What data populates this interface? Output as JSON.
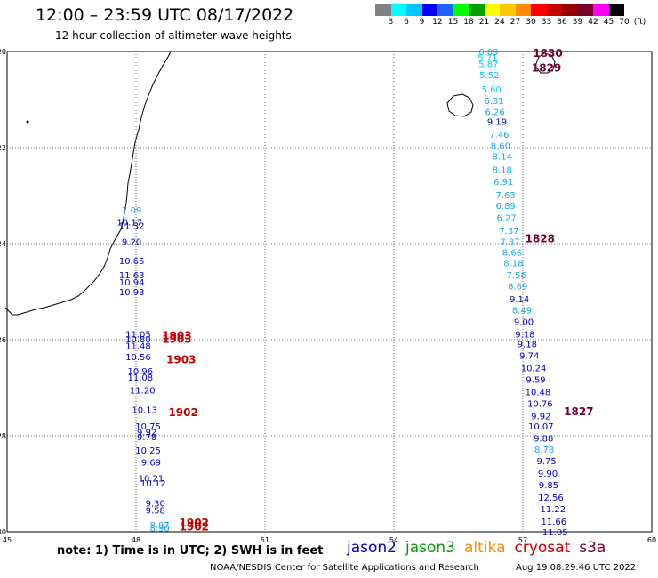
{
  "header": {
    "title": "12:00 – 23:59 UTC 08/17/2022",
    "subtitle": "12 hour collection of altimeter wave heights"
  },
  "legend": {
    "colors": [
      "#808080",
      "#00ffff",
      "#00c8ff",
      "#0000ff",
      "#1e64ff",
      "#00ff00",
      "#00a000",
      "#ffff00",
      "#ffc800",
      "#ff8c00",
      "#ff0000",
      "#c80000",
      "#960000",
      "#780028",
      "#ff00ff",
      "#000000"
    ],
    "labels": [
      "3",
      "6",
      "9",
      "12",
      "15",
      "18",
      "21",
      "24",
      "27",
      "30",
      "33",
      "36",
      "39",
      "42",
      "45",
      "70",
      "(ft)"
    ]
  },
  "axes": {
    "x_ticks": [
      "45",
      "48",
      "51",
      "54",
      "57",
      "60"
    ],
    "y_ticks": [
      "-20",
      "-22",
      "-24",
      "-26",
      "-28",
      "-30"
    ]
  },
  "chart_data": {
    "type": "scatter",
    "xlim": [
      45,
      60
    ],
    "ylim": [
      -30,
      -20
    ],
    "grid": "dotted",
    "color_scale": "wave height (ft)",
    "series": [
      {
        "name": "jason2",
        "color_by_value": true,
        "points": [
          {
            "x": 56.2,
            "y": -20.0,
            "v": "6.09"
          },
          {
            "x": 56.18,
            "y": -20.12,
            "v": "5.71"
          },
          {
            "x": 56.2,
            "y": -20.25,
            "v": "5.87"
          },
          {
            "x": 56.22,
            "y": -20.48,
            "v": "5.52"
          },
          {
            "x": 56.27,
            "y": -20.78,
            "v": "5.60"
          },
          {
            "x": 56.33,
            "y": -21.02,
            "v": "6.31"
          },
          {
            "x": 56.35,
            "y": -21.25,
            "v": "6.26"
          },
          {
            "x": 56.4,
            "y": -21.45,
            "v": "9.19"
          },
          {
            "x": 56.45,
            "y": -21.72,
            "v": "7.46"
          },
          {
            "x": 56.48,
            "y": -21.95,
            "v": "8.60"
          },
          {
            "x": 56.52,
            "y": -22.18,
            "v": "8.14"
          },
          {
            "x": 56.52,
            "y": -22.45,
            "v": "8.18"
          },
          {
            "x": 56.55,
            "y": -22.7,
            "v": "6.91"
          },
          {
            "x": 56.6,
            "y": -22.98,
            "v": "7.63"
          },
          {
            "x": 56.6,
            "y": -23.2,
            "v": "6.89"
          },
          {
            "x": 56.62,
            "y": -23.45,
            "v": "6.27"
          },
          {
            "x": 56.68,
            "y": -23.72,
            "v": "7.37"
          },
          {
            "x": 56.7,
            "y": -23.95,
            "v": "7.87"
          },
          {
            "x": 56.75,
            "y": -24.18,
            "v": "8.66"
          },
          {
            "x": 56.78,
            "y": -24.4,
            "v": "8.18"
          },
          {
            "x": 56.85,
            "y": -24.65,
            "v": "7.56"
          },
          {
            "x": 56.88,
            "y": -24.88,
            "v": "8.69"
          },
          {
            "x": 56.92,
            "y": -25.15,
            "v": "9.14"
          },
          {
            "x": 56.98,
            "y": -25.38,
            "v": "8.49"
          },
          {
            "x": 57.02,
            "y": -25.62,
            "v": "9.00"
          },
          {
            "x": 57.05,
            "y": -25.88,
            "v": "9.18"
          },
          {
            "x": 57.1,
            "y": -26.08,
            "v": "9.18"
          },
          {
            "x": 57.15,
            "y": -26.32,
            "v": "9.74"
          },
          {
            "x": 57.25,
            "y": -26.58,
            "v": "10.24"
          },
          {
            "x": 57.3,
            "y": -26.82,
            "v": "9.59"
          },
          {
            "x": 57.35,
            "y": -27.08,
            "v": "10.48"
          },
          {
            "x": 57.4,
            "y": -27.32,
            "v": "10.76"
          },
          {
            "x": 57.42,
            "y": -27.58,
            "v": "9.92"
          },
          {
            "x": 57.42,
            "y": -27.8,
            "v": "10.07"
          },
          {
            "x": 57.48,
            "y": -28.05,
            "v": "9.88"
          },
          {
            "x": 57.5,
            "y": -28.28,
            "v": "8.78"
          },
          {
            "x": 57.55,
            "y": -28.52,
            "v": "9.75"
          },
          {
            "x": 57.58,
            "y": -28.78,
            "v": "9.90"
          },
          {
            "x": 57.6,
            "y": -29.02,
            "v": "9.85"
          },
          {
            "x": 57.65,
            "y": -29.28,
            "v": "12.56"
          },
          {
            "x": 57.7,
            "y": -29.52,
            "v": "11.22"
          },
          {
            "x": 57.72,
            "y": -29.78,
            "v": "11.66"
          },
          {
            "x": 57.75,
            "y": -30.0,
            "v": "11.05"
          },
          {
            "x": 47.9,
            "y": -23.3,
            "v": "7.09"
          },
          {
            "x": 47.85,
            "y": -23.55,
            "v": "10.17"
          },
          {
            "x": 47.9,
            "y": -23.62,
            "v": "11.32"
          },
          {
            "x": 47.9,
            "y": -23.95,
            "v": "9.20"
          },
          {
            "x": 47.9,
            "y": -24.35,
            "v": "10.65"
          },
          {
            "x": 47.9,
            "y": -24.65,
            "v": "11.63"
          },
          {
            "x": 47.9,
            "y": -24.8,
            "v": "10.94"
          },
          {
            "x": 47.9,
            "y": -25.0,
            "v": "10.93"
          },
          {
            "x": 48.05,
            "y": -25.88,
            "v": "11.05"
          },
          {
            "x": 48.05,
            "y": -25.98,
            "v": "10.80"
          },
          {
            "x": 48.05,
            "y": -26.12,
            "v": "11.48"
          },
          {
            "x": 48.05,
            "y": -26.35,
            "v": "10.56"
          },
          {
            "x": 48.1,
            "y": -26.65,
            "v": "10.96"
          },
          {
            "x": 48.1,
            "y": -26.78,
            "v": "11.08"
          },
          {
            "x": 48.15,
            "y": -27.05,
            "v": "11.20"
          },
          {
            "x": 48.2,
            "y": -27.45,
            "v": "10.13"
          },
          {
            "x": 48.28,
            "y": -27.8,
            "v": "10.75"
          },
          {
            "x": 48.25,
            "y": -27.92,
            "v": "9.92"
          },
          {
            "x": 48.25,
            "y": -28.02,
            "v": "9.78"
          },
          {
            "x": 48.28,
            "y": -28.3,
            "v": "10.25"
          },
          {
            "x": 48.35,
            "y": -28.55,
            "v": "9.69"
          },
          {
            "x": 48.35,
            "y": -28.88,
            "v": "10.21"
          },
          {
            "x": 48.4,
            "y": -28.98,
            "v": "10.12"
          },
          {
            "x": 48.45,
            "y": -29.4,
            "v": "9.30"
          },
          {
            "x": 48.45,
            "y": -29.55,
            "v": "9.58"
          },
          {
            "x": 48.55,
            "y": -29.85,
            "v": "8.97"
          },
          {
            "x": 48.55,
            "y": -29.92,
            "v": "8.90"
          }
        ]
      }
    ],
    "time_labels": [
      {
        "x": 57.58,
        "y": -20.02,
        "t": "1830",
        "color": "#780028"
      },
      {
        "x": 57.55,
        "y": -20.32,
        "t": "1829",
        "color": "#780028"
      },
      {
        "x": 57.4,
        "y": -23.88,
        "t": "1828",
        "color": "#780028"
      },
      {
        "x": 58.3,
        "y": -27.48,
        "t": "1827",
        "color": "#780028"
      },
      {
        "x": 48.95,
        "y": -25.9,
        "t": "1903",
        "color": "#c80000"
      },
      {
        "x": 48.95,
        "y": -25.97,
        "t": "1903",
        "color": "#c80000"
      },
      {
        "x": 49.05,
        "y": -26.4,
        "t": "1903",
        "color": "#c80000"
      },
      {
        "x": 49.1,
        "y": -27.5,
        "t": "1902",
        "color": "#c80000"
      },
      {
        "x": 49.35,
        "y": -29.8,
        "t": "1902",
        "color": "#c80000"
      },
      {
        "x": 49.35,
        "y": -29.88,
        "t": "1902",
        "color": "#c80000"
      }
    ]
  },
  "footer": {
    "note": "note: 1) Time is in UTC; 2) SWH is in feet",
    "missions": [
      {
        "label": "jason2",
        "color": "#0000c8"
      },
      {
        "label": "jason3",
        "color": "#00a000"
      },
      {
        "label": "altika",
        "color": "#ff8c00"
      },
      {
        "label": "cryosat",
        "color": "#c80000"
      },
      {
        "label": "s3a",
        "color": "#780028"
      }
    ],
    "credit": "NOAA/NESDIS Center for Satellite Applications and Research",
    "timestamp": "Aug 19 08:29:46 UTC 2022"
  }
}
